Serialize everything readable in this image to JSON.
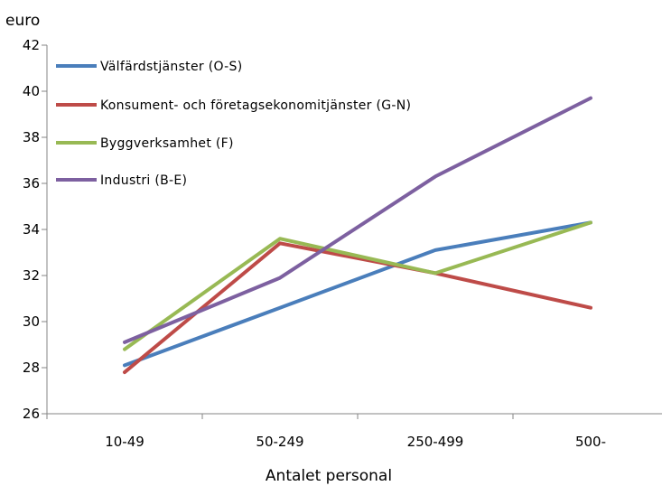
{
  "chart_data": {
    "type": "line",
    "ylabel": "euro",
    "xlabel": "Antalet personal",
    "categories": [
      "10-49",
      "50-249",
      "250-499",
      "500-"
    ],
    "ylim": [
      26,
      42
    ],
    "yticks": [
      26,
      28,
      30,
      32,
      34,
      36,
      38,
      40,
      42
    ],
    "grid": false,
    "legend_position": "top-left",
    "series": [
      {
        "name": "Välfärdstjänster (O-S)",
        "color": "#4a7ebb",
        "values": [
          28.1,
          30.6,
          33.1,
          34.3
        ]
      },
      {
        "name": "Konsument- och företagsekonomitjänster (G-N)",
        "color": "#be4b48",
        "values": [
          27.8,
          33.4,
          32.1,
          30.6
        ]
      },
      {
        "name": "Byggverksamhet (F)",
        "color": "#98b954",
        "values": [
          28.8,
          33.6,
          32.1,
          34.3
        ]
      },
      {
        "name": "Industri (B-E)",
        "color": "#7d60a0",
        "values": [
          29.1,
          31.9,
          36.3,
          39.7
        ]
      }
    ]
  }
}
